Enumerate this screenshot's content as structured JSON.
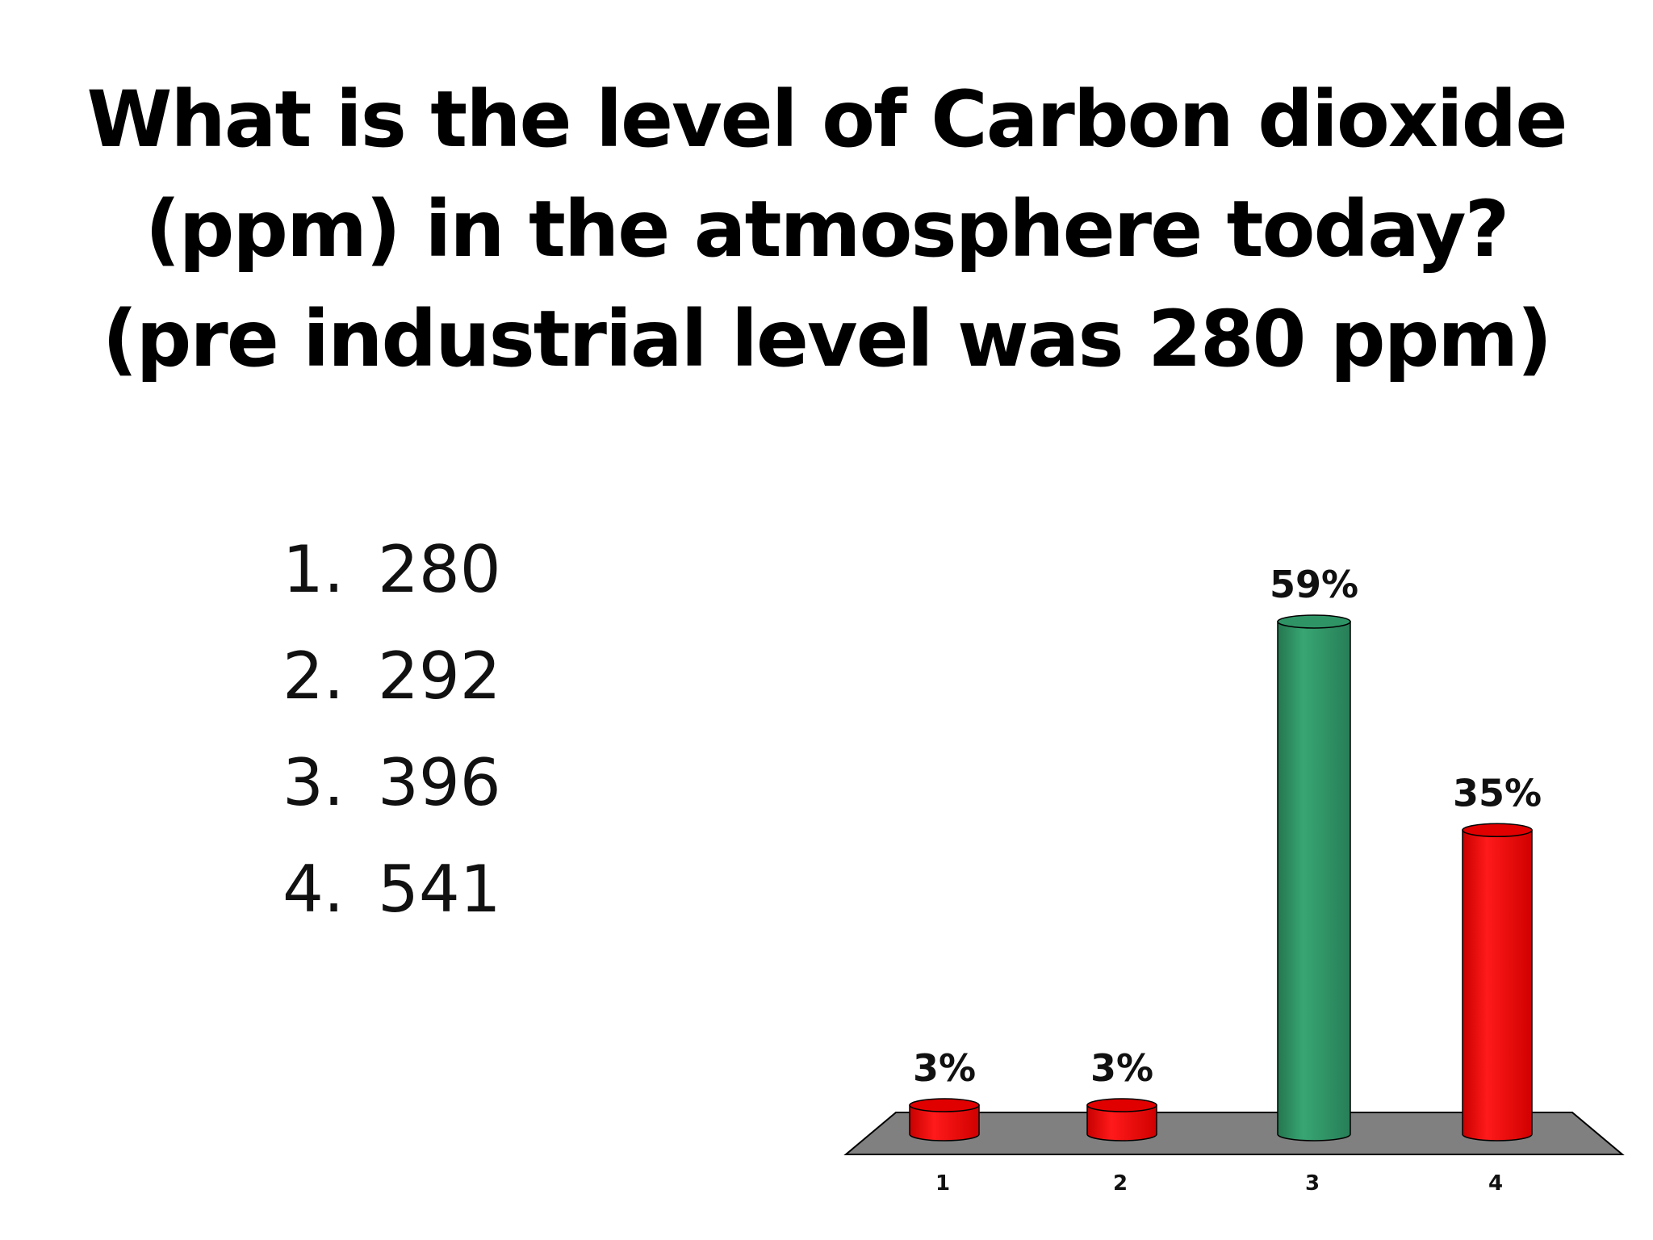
{
  "slide": {
    "title_lines": [
      "What is the level of Carbon dioxide",
      "(ppm) in the atmosphere today?",
      "(pre industrial level was 280 ppm)"
    ],
    "answers": [
      {
        "number": "1.",
        "value": "280"
      },
      {
        "number": "2.",
        "value": "292"
      },
      {
        "number": "3.",
        "value": "396"
      },
      {
        "number": "4.",
        "value": "541"
      }
    ]
  },
  "chart_data": {
    "type": "bar",
    "title": "What is the level of Carbon dioxide (ppm) in the atmosphere today? (pre industrial level was 280 ppm)",
    "categories": [
      "1",
      "2",
      "3",
      "4"
    ],
    "values": [
      3,
      3,
      59,
      35
    ],
    "value_labels": [
      "3%",
      "3%",
      "59%",
      "35%"
    ],
    "unit": "%",
    "ylim": [
      0,
      59
    ],
    "grid": false,
    "legend": "none",
    "colors": {
      "default_bar": "#ff0000",
      "correct_bar": "#2e9466",
      "floor": "#808080"
    },
    "highlight_index": 2
  }
}
